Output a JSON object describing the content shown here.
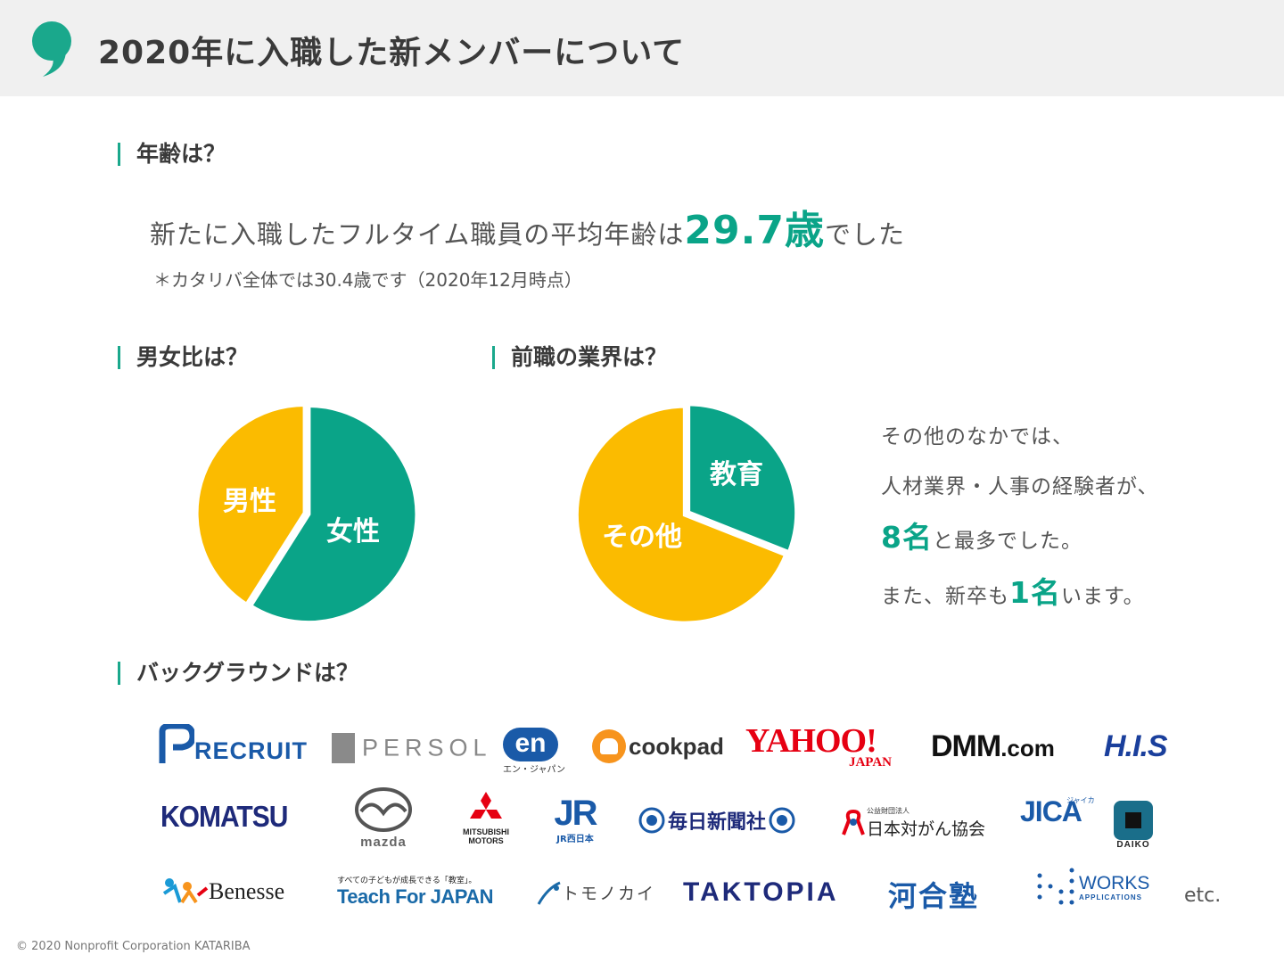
{
  "header": {
    "title": "2020年に入職した新メンバーについて"
  },
  "colors": {
    "accent": "#0aa488",
    "yellow": "#fbbb00",
    "text": "#555555"
  },
  "age": {
    "section_title": "年齢は？",
    "main_prefix": "新たに入職したフルタイム職員の平均年齢は",
    "value": "29.7歳",
    "main_suffix": "でした",
    "note": "＊カタリバ全体では30.4歳です（2020年12月時点）"
  },
  "gender": {
    "section_title": "男女比は？",
    "chart_data": {
      "type": "pie",
      "slices": [
        {
          "label": "女性",
          "value": 59,
          "color": "#0aa488"
        },
        {
          "label": "男性",
          "value": 41,
          "color": "#fbbb00"
        }
      ]
    }
  },
  "industry": {
    "section_title": "前職の業界は？",
    "chart_data": {
      "type": "pie",
      "slices": [
        {
          "label": "教育",
          "value": 31,
          "color": "#0aa488"
        },
        {
          "label": "その他",
          "value": 69,
          "color": "#fbbb00"
        }
      ]
    },
    "note": {
      "line1": "その他のなかでは、",
      "line2": "人材業界・人事の経験者が、",
      "line3_num": "8名",
      "line3_rest": "と最多でした。",
      "line4_prefix": "また、新卒も",
      "line4_num": "1名",
      "line4_suffix": "います。"
    }
  },
  "background": {
    "section_title": "バックグラウンドは？",
    "logos": {
      "recruit": "RECRUIT",
      "persol": "PERSOL",
      "en": "en",
      "en_sub": "エン・ジャパン",
      "cookpad": "cookpad",
      "yahoo": "YAHOO!",
      "yahoo_sub": "JAPAN",
      "dmm": "DMM",
      "dmm_suffix": ".com",
      "his": "H.I.S",
      "komatsu": "KOMATSU",
      "mazda": "mazda",
      "mitsubishi": "MITSUBISHI",
      "mitsubishi_sub": "MOTORS",
      "jr": "JR",
      "jr_sub": "JR西日本",
      "mainichi": "毎日新聞社",
      "gan_sub": "公益財団法人",
      "gan": "日本対がん協会",
      "jica": "JICA",
      "jica_sub": "ジャイカ",
      "daiko": "DAIKO",
      "benesse": "Benesse",
      "tfj_sub": "すべての子どもが成長できる「教室」。",
      "tfj": "Teach For JAPAN",
      "tomonokai": "トモノカイ",
      "taktopia": "TAKTOPIA",
      "kawai": "河合塾",
      "works": "WORKS",
      "works_sub": "APPLICATIONS",
      "etc": "etc."
    }
  },
  "footer": {
    "copyright": "© 2020 Nonprofit Corporation KATARIBA"
  }
}
